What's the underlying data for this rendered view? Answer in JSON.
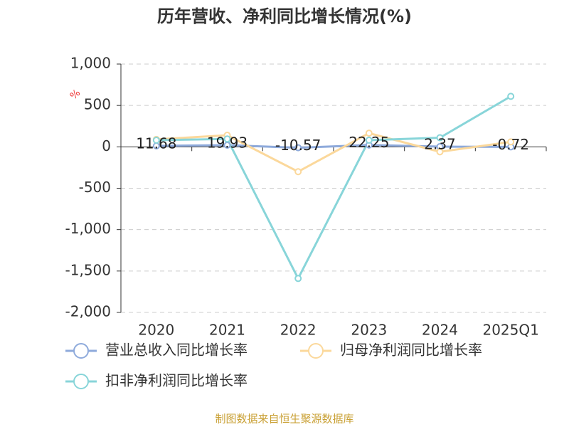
{
  "chart_data": {
    "type": "line",
    "title": "历年营收、净利同比增长情况(%)",
    "y_unit": "%",
    "categories": [
      "2020",
      "2021",
      "2022",
      "2023",
      "2024",
      "2025Q1"
    ],
    "series": [
      {
        "name": "营业总收入同比增长率",
        "color": "#8eaadb",
        "values": [
          11.68,
          19.93,
          -10.57,
          22.25,
          2.37,
          -0.72
        ],
        "show_labels": true
      },
      {
        "name": "归母净利润同比增长率",
        "color": "#fbd89b",
        "values": [
          90,
          140,
          -300,
          165,
          -60,
          60
        ]
      },
      {
        "name": "扣非净利润同比增长率",
        "color": "#88d5d9",
        "values": [
          80,
          95,
          -1590,
          80,
          110,
          610
        ]
      }
    ],
    "ylim": [
      -2000,
      1000
    ],
    "yticks": [
      {
        "value": -2000,
        "label": "-2,000"
      },
      {
        "value": -1500,
        "label": "-1,500"
      },
      {
        "value": -1000,
        "label": "-1,000"
      },
      -500,
      0,
      500,
      {
        "value": 1000,
        "label": "1,000"
      }
    ],
    "grid": true,
    "source": "制图数据来自恒生聚源数据库"
  }
}
